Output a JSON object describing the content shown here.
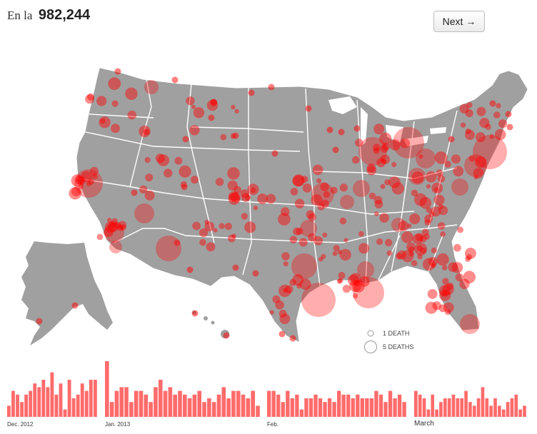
{
  "header": {
    "prefix": "En la",
    "count": "982,244"
  },
  "next_button": {
    "label": "Next →"
  },
  "legend": {
    "one": "1 DEATH",
    "five": "5 DEATHS"
  },
  "colors": {
    "land": "#a0a0a0",
    "border": "#ffffff",
    "marker": "#ff0000",
    "bar": "#ff6b6b"
  },
  "timeline": {
    "months": [
      {
        "label": "Dec. 2012",
        "size": "small",
        "values": [
          3,
          7,
          6,
          4,
          6,
          7,
          9,
          8,
          10,
          8,
          12,
          6,
          9,
          2,
          10,
          5,
          6,
          9,
          7,
          10,
          10
        ]
      },
      {
        "label": "Jan. 2013",
        "size": "small",
        "values": [
          15,
          4,
          7,
          8,
          8,
          4,
          7,
          7,
          6,
          4,
          8,
          10,
          7,
          8,
          6,
          7,
          6,
          5,
          6,
          7,
          4,
          5,
          4,
          6,
          8,
          5,
          7,
          7,
          6,
          5,
          7,
          3
        ]
      },
      {
        "label": "Feb.",
        "size": "small",
        "values": [
          7,
          7,
          6,
          4,
          7,
          5,
          6,
          2,
          5,
          5,
          6,
          5,
          4,
          5,
          4,
          7,
          6,
          6,
          5,
          6,
          5,
          5,
          5,
          7,
          6,
          4,
          7,
          5,
          6,
          4
        ]
      },
      {
        "label": "March",
        "size": "big",
        "values": [
          7,
          6,
          5,
          2,
          6,
          2,
          4,
          5,
          5,
          6,
          5,
          5,
          7,
          4,
          3,
          5,
          8,
          5,
          3,
          5,
          3,
          2,
          4,
          5,
          6,
          2,
          3
        ]
      }
    ]
  }
}
